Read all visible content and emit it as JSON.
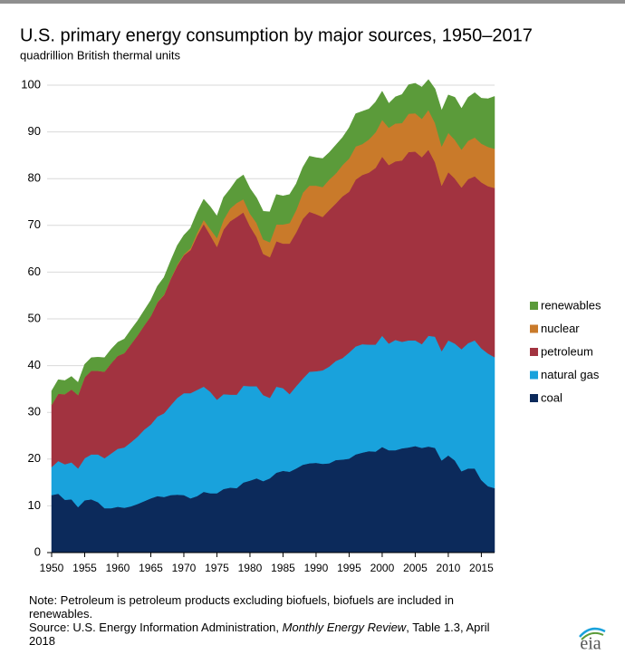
{
  "chart_data": {
    "type": "stacked-area",
    "title": "U.S. primary energy consumption by major sources, 1950–2017",
    "subtitle": "quadrillion British thermal units",
    "x": [
      1950,
      1951,
      1952,
      1953,
      1954,
      1955,
      1956,
      1957,
      1958,
      1959,
      1960,
      1961,
      1962,
      1963,
      1964,
      1965,
      1966,
      1967,
      1968,
      1969,
      1970,
      1971,
      1972,
      1973,
      1974,
      1975,
      1976,
      1977,
      1978,
      1979,
      1980,
      1981,
      1982,
      1983,
      1984,
      1985,
      1986,
      1987,
      1988,
      1989,
      1990,
      1991,
      1992,
      1993,
      1994,
      1995,
      1996,
      1997,
      1998,
      1999,
      2000,
      2001,
      2002,
      2003,
      2004,
      2005,
      2006,
      2007,
      2008,
      2009,
      2010,
      2011,
      2012,
      2013,
      2014,
      2015,
      2016,
      2017
    ],
    "xlim": [
      1950,
      2017
    ],
    "xticks": [
      1950,
      1955,
      1960,
      1965,
      1970,
      1975,
      1980,
      1985,
      1990,
      1995,
      2000,
      2005,
      2010,
      2015
    ],
    "ylim": [
      0,
      100
    ],
    "yticks": [
      0,
      10,
      20,
      30,
      40,
      50,
      60,
      70,
      80,
      90,
      100
    ],
    "grid": true,
    "legend": "right",
    "series": [
      {
        "name": "coal",
        "color": "#0c2a5b",
        "values": [
          12.3,
          12.6,
          11.3,
          11.4,
          9.7,
          11.2,
          11.4,
          10.8,
          9.5,
          9.5,
          9.8,
          9.6,
          9.9,
          10.4,
          11.0,
          11.6,
          12.1,
          11.9,
          12.3,
          12.4,
          12.3,
          11.6,
          12.1,
          13.0,
          12.7,
          12.7,
          13.6,
          13.9,
          13.8,
          15.0,
          15.4,
          15.9,
          15.3,
          15.9,
          17.1,
          17.5,
          17.3,
          18.0,
          18.8,
          19.1,
          19.2,
          19.0,
          19.1,
          19.8,
          19.9,
          20.1,
          21.0,
          21.4,
          21.7,
          21.6,
          22.6,
          21.9,
          21.9,
          22.3,
          22.5,
          22.8,
          22.4,
          22.7,
          22.4,
          19.7,
          20.8,
          19.7,
          17.4,
          18.0,
          18.0,
          15.5,
          14.2,
          13.8
        ]
      },
      {
        "name": "natural gas",
        "color": "#19a2dc",
        "values": [
          6.0,
          7.0,
          7.6,
          7.9,
          8.3,
          9.0,
          9.6,
          10.2,
          10.7,
          11.7,
          12.4,
          12.9,
          13.7,
          14.4,
          15.3,
          15.8,
          17.0,
          17.9,
          19.2,
          20.7,
          21.8,
          22.5,
          22.7,
          22.5,
          21.7,
          20.0,
          20.3,
          19.9,
          20.0,
          20.7,
          20.2,
          19.7,
          18.4,
          17.2,
          18.4,
          17.7,
          16.6,
          17.6,
          18.4,
          19.6,
          19.6,
          20.0,
          20.7,
          21.2,
          21.7,
          22.7,
          23.1,
          23.2,
          22.8,
          22.9,
          23.8,
          22.8,
          23.6,
          22.8,
          22.9,
          22.6,
          22.2,
          23.7,
          23.8,
          23.4,
          24.6,
          25.0,
          26.1,
          26.8,
          27.4,
          28.2,
          28.4,
          28.0
        ]
      },
      {
        "name": "petroleum",
        "color": "#a23340",
        "values": [
          13.3,
          14.4,
          15.0,
          15.6,
          15.7,
          17.3,
          17.9,
          17.9,
          18.5,
          19.3,
          19.9,
          20.2,
          21.0,
          21.7,
          22.3,
          23.2,
          24.4,
          25.3,
          27.0,
          28.3,
          29.5,
          30.6,
          33.0,
          34.8,
          33.5,
          32.7,
          35.2,
          37.1,
          38.0,
          37.1,
          34.2,
          31.9,
          30.2,
          30.1,
          31.1,
          30.9,
          32.2,
          32.9,
          34.2,
          34.2,
          33.6,
          32.8,
          33.5,
          33.7,
          34.6,
          34.4,
          35.7,
          36.2,
          36.8,
          37.8,
          38.3,
          38.2,
          38.2,
          38.8,
          40.3,
          40.4,
          40.0,
          39.8,
          37.3,
          35.4,
          36.0,
          35.3,
          34.6,
          35.1,
          35.1,
          35.5,
          35.8,
          36.2
        ]
      },
      {
        "name": "nuclear",
        "color": "#c97a2a",
        "values": [
          0,
          0,
          0,
          0,
          0,
          0,
          0,
          0,
          0,
          0,
          0,
          0,
          0,
          0,
          0,
          0,
          0.1,
          0.1,
          0.1,
          0.2,
          0.2,
          0.4,
          0.6,
          0.9,
          1.3,
          1.9,
          2.1,
          2.7,
          3.0,
          2.8,
          2.7,
          3.0,
          3.1,
          3.2,
          3.6,
          4.1,
          4.4,
          4.8,
          5.6,
          5.6,
          6.1,
          6.4,
          6.5,
          6.4,
          6.7,
          7.1,
          7.1,
          6.6,
          7.1,
          7.6,
          7.9,
          8.0,
          8.1,
          8.0,
          8.2,
          8.2,
          8.2,
          8.5,
          8.4,
          8.4,
          8.4,
          8.3,
          8.1,
          8.2,
          8.3,
          8.3,
          8.4,
          8.4
        ]
      },
      {
        "name": "renewables",
        "color": "#5b9b3a",
        "values": [
          3.0,
          3.0,
          2.9,
          2.8,
          2.7,
          2.8,
          2.8,
          2.9,
          3.0,
          3.0,
          2.9,
          3.0,
          3.1,
          3.1,
          3.2,
          3.4,
          3.4,
          3.7,
          3.8,
          4.1,
          4.1,
          4.3,
          4.4,
          4.4,
          4.8,
          4.7,
          4.8,
          4.2,
          5.0,
          5.2,
          5.4,
          5.4,
          6.0,
          6.5,
          6.4,
          6.1,
          6.1,
          5.6,
          5.4,
          6.3,
          6.0,
          6.1,
          5.8,
          6.1,
          5.9,
          6.6,
          7.0,
          7.0,
          6.5,
          6.5,
          6.1,
          5.2,
          5.7,
          6.1,
          6.2,
          6.4,
          6.8,
          6.5,
          7.3,
          7.7,
          8.1,
          9.1,
          8.8,
          9.3,
          9.6,
          9.7,
          10.3,
          11.2
        ]
      }
    ]
  },
  "notes": {
    "note": "Note: Petroleum is petroleum products excluding biofuels, biofuels are included in renewables.",
    "source_prefix": "Source: U.S. Energy Information Administration, ",
    "source_italic": "Monthly Energy Review",
    "source_suffix": ", Table 1.3, April 2018"
  },
  "logo": "eia"
}
